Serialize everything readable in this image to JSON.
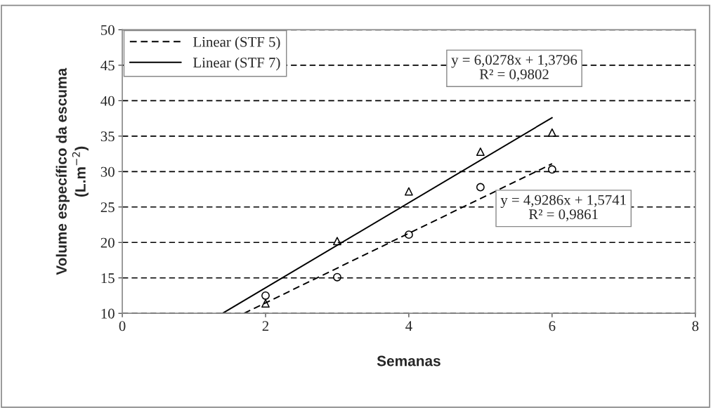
{
  "chart_data": {
    "type": "scatter",
    "xlabel": "Semanas",
    "ylabel": "Volume específico da escuma\n(L.m$^{−2}$)",
    "xlim": [
      0,
      8
    ],
    "xticks": [
      0,
      2,
      4,
      6,
      8
    ],
    "ylim": [
      10,
      50
    ],
    "yticks": [
      10,
      15,
      20,
      25,
      30,
      35,
      40,
      45,
      50
    ],
    "grid": "y",
    "legend": "top left",
    "series": [
      {
        "marker": "circle",
        "color": "#000000",
        "x": [
          2,
          3,
          4,
          5,
          6
        ],
        "values": [
          12.5,
          15.1,
          21.1,
          27.8,
          30.3
        ]
      },
      {
        "marker": "triangle",
        "color": "#000000",
        "x": [
          2,
          3,
          4,
          5,
          6
        ],
        "values": [
          11.4,
          20.2,
          27.2,
          32.8,
          35.5
        ]
      },
      {
        "type": "line",
        "name": "Linear (STF 5)",
        "line_style": "dashed",
        "color": "#000000",
        "x": [
          1.7,
          6
        ],
        "values": [
          10,
          31.1
        ]
      },
      {
        "type": "line",
        "name": "Linear (STF 7)",
        "line_style": "solid",
        "color": "#000000",
        "x": [
          1.4,
          6
        ],
        "values": [
          10,
          37.6
        ]
      }
    ],
    "annotations": [
      "y = 6,0278x + 1,3796\nR² = 0,9802",
      "y = 4,9286x + 1,5741\nR² = 0,9861"
    ]
  }
}
